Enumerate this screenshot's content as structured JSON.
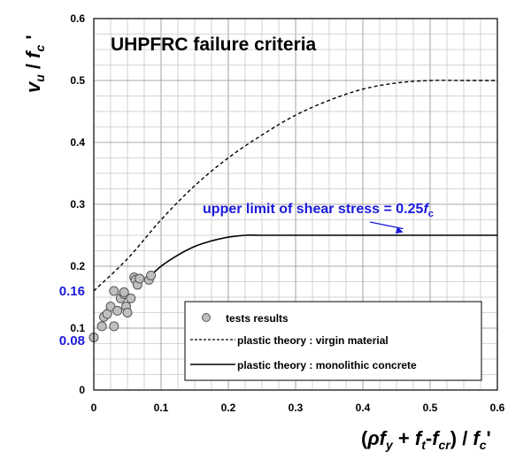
{
  "chart_data": {
    "type": "scatter",
    "title": "UHPFRC failure criteria",
    "xlim": [
      0,
      0.6
    ],
    "ylim": [
      0,
      0.6
    ],
    "x_ticks": [
      "0",
      "0.1",
      "0.2",
      "0.3",
      "0.4",
      "0.5",
      "0.6"
    ],
    "y_ticks": [
      "0",
      "0.1",
      "0.2",
      "0.3",
      "0.4",
      "0.5",
      "0.6"
    ],
    "y_extra_ticks": [
      {
        "value": 0.16,
        "label": "0.16"
      },
      {
        "value": 0.08,
        "label": "0.08"
      }
    ],
    "grid": true,
    "series": [
      {
        "name": "tests results",
        "kind": "scatter",
        "marker": "circle",
        "color": "#bfbfbf",
        "points": [
          [
            0.0,
            0.085
          ],
          [
            0.012,
            0.103
          ],
          [
            0.015,
            0.118
          ],
          [
            0.02,
            0.123
          ],
          [
            0.025,
            0.135
          ],
          [
            0.03,
            0.103
          ],
          [
            0.03,
            0.16
          ],
          [
            0.035,
            0.128
          ],
          [
            0.04,
            0.148
          ],
          [
            0.045,
            0.155
          ],
          [
            0.045,
            0.158
          ],
          [
            0.048,
            0.135
          ],
          [
            0.05,
            0.125
          ],
          [
            0.055,
            0.148
          ],
          [
            0.06,
            0.182
          ],
          [
            0.062,
            0.178
          ],
          [
            0.065,
            0.17
          ],
          [
            0.068,
            0.18
          ],
          [
            0.082,
            0.178
          ],
          [
            0.085,
            0.185
          ]
        ]
      },
      {
        "name": "plastic theory : virgin material",
        "kind": "line",
        "dash": "dashed",
        "x": [
          0,
          0.05,
          0.1,
          0.15,
          0.2,
          0.25,
          0.3,
          0.35,
          0.4,
          0.45,
          0.5,
          0.55,
          0.6
        ],
        "y": [
          0.16,
          0.212,
          0.275,
          0.33,
          0.375,
          0.412,
          0.444,
          0.468,
          0.486,
          0.496,
          0.5,
          0.5,
          0.5
        ]
      },
      {
        "name": "plastic theory : monolithic concrete",
        "kind": "line",
        "dash": "solid",
        "x": [
          0.08,
          0.1,
          0.125,
          0.15,
          0.175,
          0.2,
          0.225,
          0.25,
          0.3,
          0.4,
          0.5,
          0.6
        ],
        "y": [
          0.18,
          0.2,
          0.218,
          0.232,
          0.241,
          0.247,
          0.25,
          0.25,
          0.25,
          0.25,
          0.25,
          0.25
        ]
      }
    ],
    "annotation": {
      "text": "upper limit of shear stress = 0.25",
      "subscript_var": "f",
      "subscript": "c",
      "arrow_to": [
        0.46,
        0.252
      ]
    },
    "legend": {
      "placement": "bottom-right"
    },
    "xlabel": {
      "open": "(",
      "rho": "ρ",
      "f1": "f",
      "s1": "y",
      "plus": " + ",
      "f2": "f",
      "s2": "t",
      "dash": "-",
      "f3": "f",
      "s3": "cr",
      "close": ") / ",
      "f4": "f",
      "s4": "c",
      "prime": "'"
    },
    "ylabel": {
      "v": "v",
      "vs": "u",
      "slash": " / ",
      "f": "f",
      "fs": "c",
      "prime": " '"
    }
  }
}
